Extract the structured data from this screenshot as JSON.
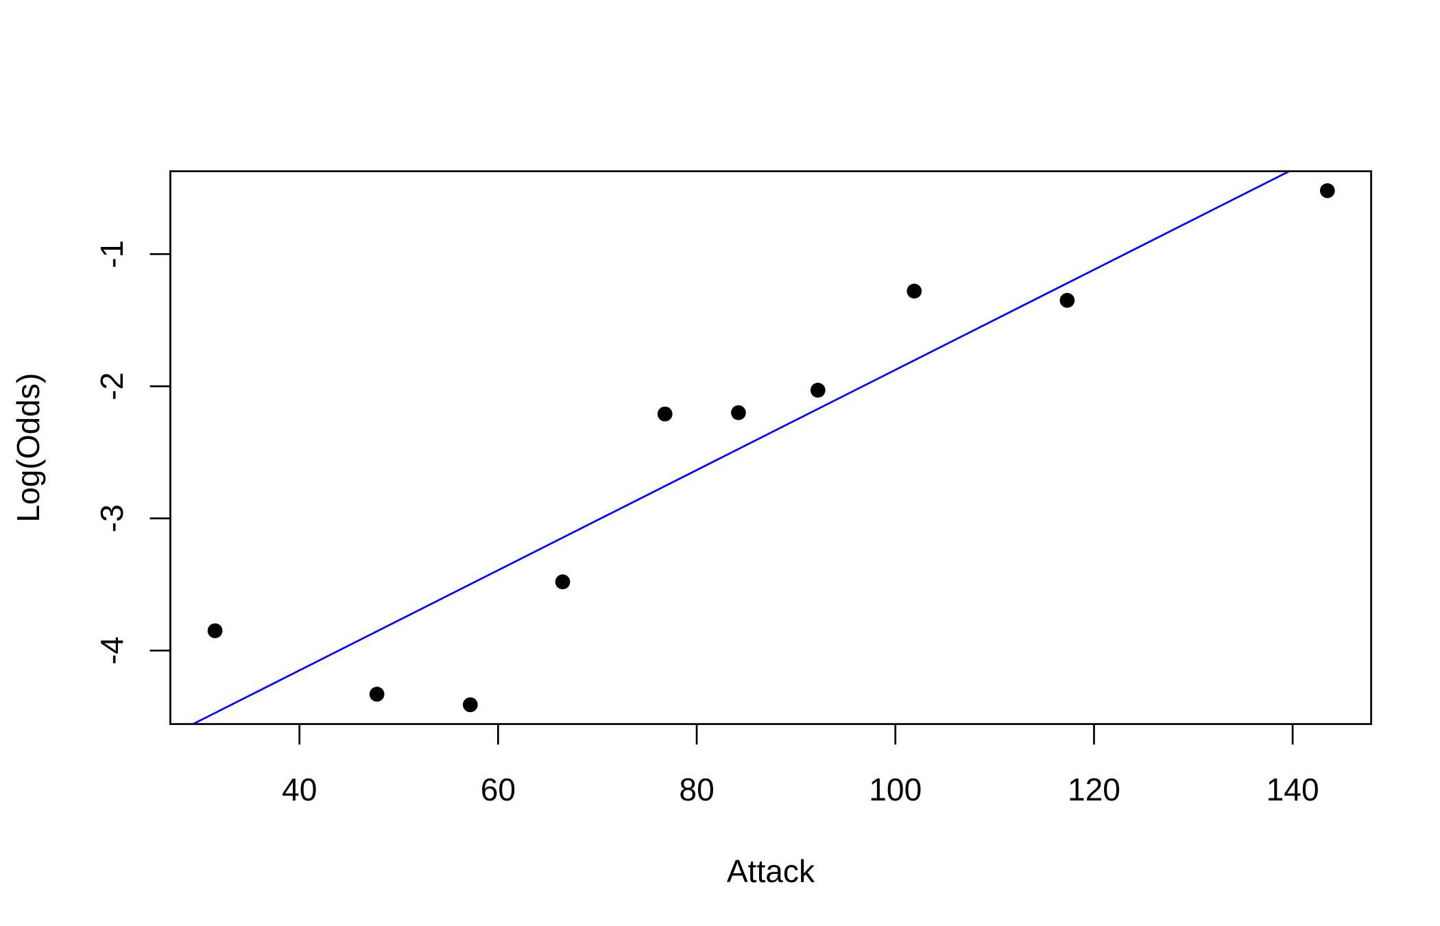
{
  "chart_data": {
    "type": "scatter",
    "title": "",
    "xlabel": "Attack",
    "ylabel": "Log(Odds)",
    "xlim": [
      27.0,
      147.9
    ],
    "ylim": [
      -4.556,
      -0.373
    ],
    "x_ticks": [
      40,
      60,
      80,
      100,
      120,
      140
    ],
    "x_tick_labels": [
      "40",
      "60",
      "80",
      "100",
      "120",
      "140"
    ],
    "y_ticks": [
      -1,
      -2,
      -3,
      -4
    ],
    "y_tick_labels": [
      "-1",
      "-2",
      "-3",
      "-4"
    ],
    "grid": false,
    "points": {
      "x": [
        31.5,
        47.8,
        57.2,
        66.5,
        76.8,
        84.2,
        92.2,
        101.9,
        117.3,
        143.5
      ],
      "y": [
        -3.85,
        -4.33,
        -4.41,
        -3.48,
        -2.21,
        -2.2,
        -2.03,
        -1.28,
        -1.35,
        -0.52
      ],
      "color": "#000000"
    },
    "fit_line": {
      "intercept": -5.666,
      "slope": 0.0379,
      "color": "#0000ff"
    }
  }
}
